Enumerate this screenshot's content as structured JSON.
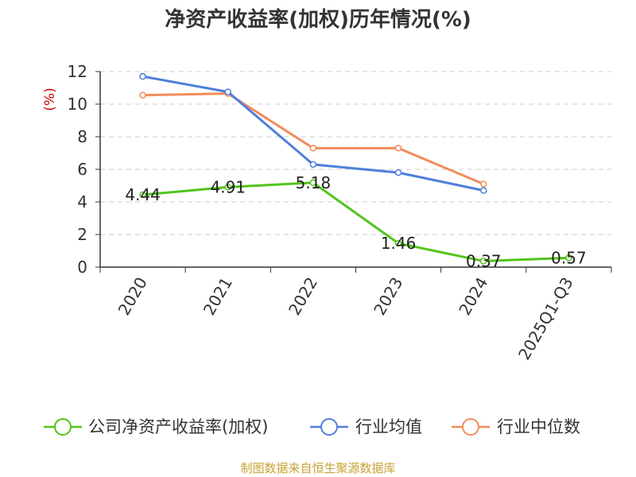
{
  "chart_data": {
    "type": "line",
    "title": "净资产收益率(加权)历年情况(%)",
    "ylabel": "(%)",
    "xlabel": "",
    "categories": [
      "2020",
      "2021",
      "2022",
      "2023",
      "2024",
      "2025Q1-Q3"
    ],
    "ylim": [
      0,
      12
    ],
    "yticks": [
      0,
      2,
      4,
      6,
      8,
      10,
      12
    ],
    "grid": true,
    "legend_position": "bottom",
    "series": [
      {
        "name": "公司净资产收益率(加权)",
        "color": "#52c41a",
        "values": [
          4.44,
          4.91,
          5.18,
          1.46,
          0.37,
          0.57
        ],
        "labels": [
          "4.44",
          "4.91",
          "5.18",
          "1.46",
          "0.37",
          "0.57"
        ]
      },
      {
        "name": "行业均值",
        "color": "#4e7fdc",
        "values": [
          11.7,
          10.75,
          6.3,
          5.8,
          4.7,
          null
        ]
      },
      {
        "name": "行业中位数",
        "color": "#f28c5b",
        "values": [
          10.55,
          10.65,
          7.3,
          7.3,
          5.1,
          null
        ]
      }
    ],
    "ylabel_color": "#cc0000"
  },
  "footer": {
    "source": "制图数据来自恒生聚源数据库",
    "color": "#c8a235"
  }
}
